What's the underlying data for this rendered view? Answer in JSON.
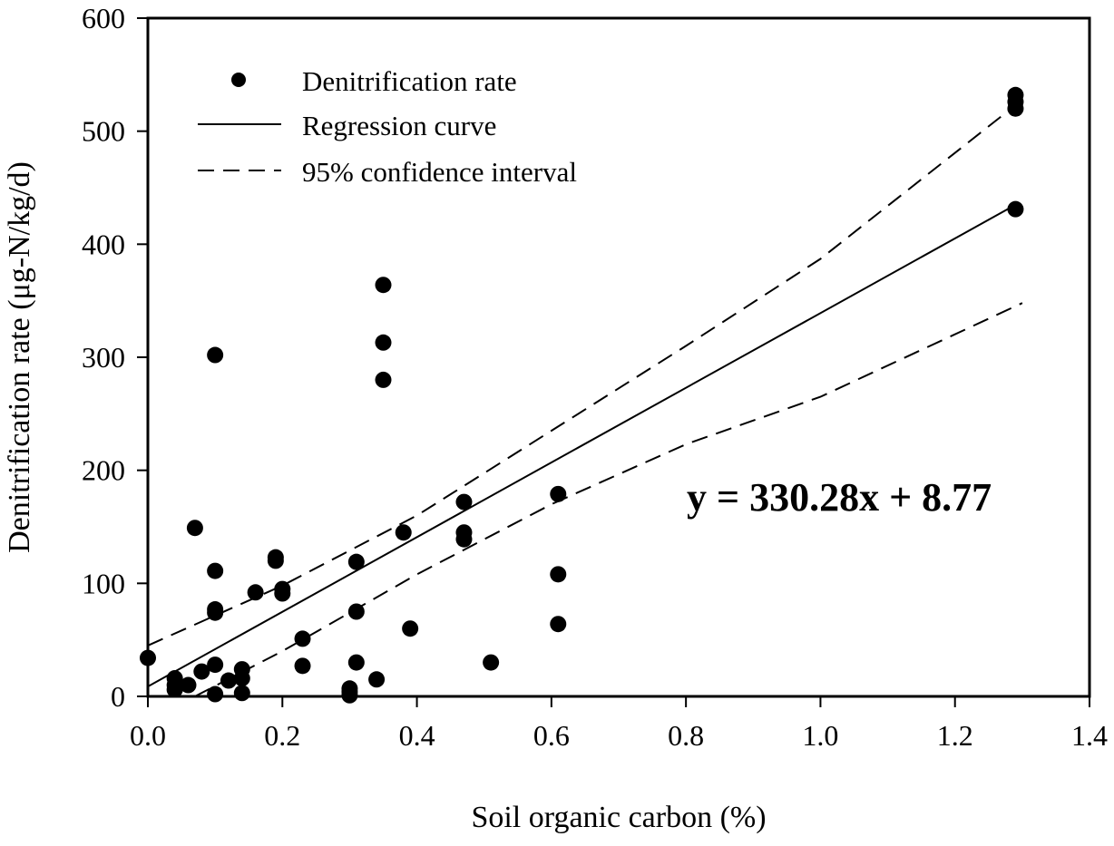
{
  "chart_data": {
    "type": "scatter",
    "title": "",
    "xlabel": "Soil organic carbon (%)",
    "ylabel": "Denitrification rate (μg-N/kg/d)",
    "xlim": [
      0.0,
      1.4
    ],
    "ylim": [
      0,
      600
    ],
    "x_ticks": [
      0.0,
      0.2,
      0.4,
      0.6,
      0.8,
      1.0,
      1.2,
      1.4
    ],
    "x_tick_labels": [
      "0.0",
      "0.2",
      "0.4",
      "0.6",
      "0.8",
      "1.0",
      "1.2",
      "1.4"
    ],
    "y_ticks": [
      0,
      100,
      200,
      300,
      400,
      500,
      600
    ],
    "y_tick_labels": [
      "0",
      "100",
      "200",
      "300",
      "400",
      "500",
      "600"
    ],
    "grid": false,
    "legend_position": "top-left",
    "legend": [
      {
        "label": "Denitrification rate",
        "marker": "filled-circle"
      },
      {
        "label": "Regression curve",
        "line": "solid"
      },
      {
        "label": "95% confidence interval",
        "line": "dashed"
      }
    ],
    "annotation": "y = 330.28x + 8.77",
    "series": [
      {
        "name": "Denitrification rate",
        "kind": "points",
        "points": [
          [
            0.0,
            34
          ],
          [
            0.04,
            16
          ],
          [
            0.04,
            10
          ],
          [
            0.04,
            6
          ],
          [
            0.06,
            10
          ],
          [
            0.08,
            22
          ],
          [
            0.1,
            28
          ],
          [
            0.1,
            2
          ],
          [
            0.07,
            149
          ],
          [
            0.1,
            302
          ],
          [
            0.1,
            111
          ],
          [
            0.1,
            77
          ],
          [
            0.1,
            74
          ],
          [
            0.12,
            14
          ],
          [
            0.14,
            3
          ],
          [
            0.14,
            24
          ],
          [
            0.14,
            16
          ],
          [
            0.16,
            92
          ],
          [
            0.19,
            120
          ],
          [
            0.19,
            123
          ],
          [
            0.2,
            91
          ],
          [
            0.2,
            95
          ],
          [
            0.23,
            51
          ],
          [
            0.23,
            27
          ],
          [
            0.3,
            1
          ],
          [
            0.3,
            4
          ],
          [
            0.3,
            7
          ],
          [
            0.31,
            119
          ],
          [
            0.31,
            75
          ],
          [
            0.31,
            30
          ],
          [
            0.34,
            15
          ],
          [
            0.35,
            364
          ],
          [
            0.35,
            313
          ],
          [
            0.35,
            280
          ],
          [
            0.38,
            145
          ],
          [
            0.39,
            60
          ],
          [
            0.47,
            172
          ],
          [
            0.47,
            145
          ],
          [
            0.47,
            139
          ],
          [
            0.51,
            30
          ],
          [
            0.61,
            179
          ],
          [
            0.61,
            108
          ],
          [
            0.61,
            64
          ],
          [
            1.29,
            532
          ],
          [
            1.29,
            526
          ],
          [
            1.29,
            520
          ],
          [
            1.29,
            431
          ]
        ]
      },
      {
        "name": "Regression curve",
        "kind": "line",
        "style": "solid",
        "slope": 330.28,
        "intercept": 8.77,
        "x_range": [
          0.0,
          1.29
        ]
      },
      {
        "name": "95% confidence interval (upper)",
        "kind": "line",
        "style": "dashed",
        "points": [
          [
            0.0,
            45
          ],
          [
            0.2,
            98
          ],
          [
            0.4,
            160
          ],
          [
            0.6,
            235
          ],
          [
            0.8,
            310
          ],
          [
            1.0,
            387
          ],
          [
            1.29,
            523
          ]
        ]
      },
      {
        "name": "95% confidence interval (lower)",
        "kind": "line",
        "style": "dashed",
        "points": [
          [
            0.07,
            0
          ],
          [
            0.2,
            40
          ],
          [
            0.4,
            108
          ],
          [
            0.6,
            170
          ],
          [
            0.8,
            223
          ],
          [
            1.0,
            265
          ],
          [
            1.3,
            348
          ]
        ]
      }
    ]
  }
}
